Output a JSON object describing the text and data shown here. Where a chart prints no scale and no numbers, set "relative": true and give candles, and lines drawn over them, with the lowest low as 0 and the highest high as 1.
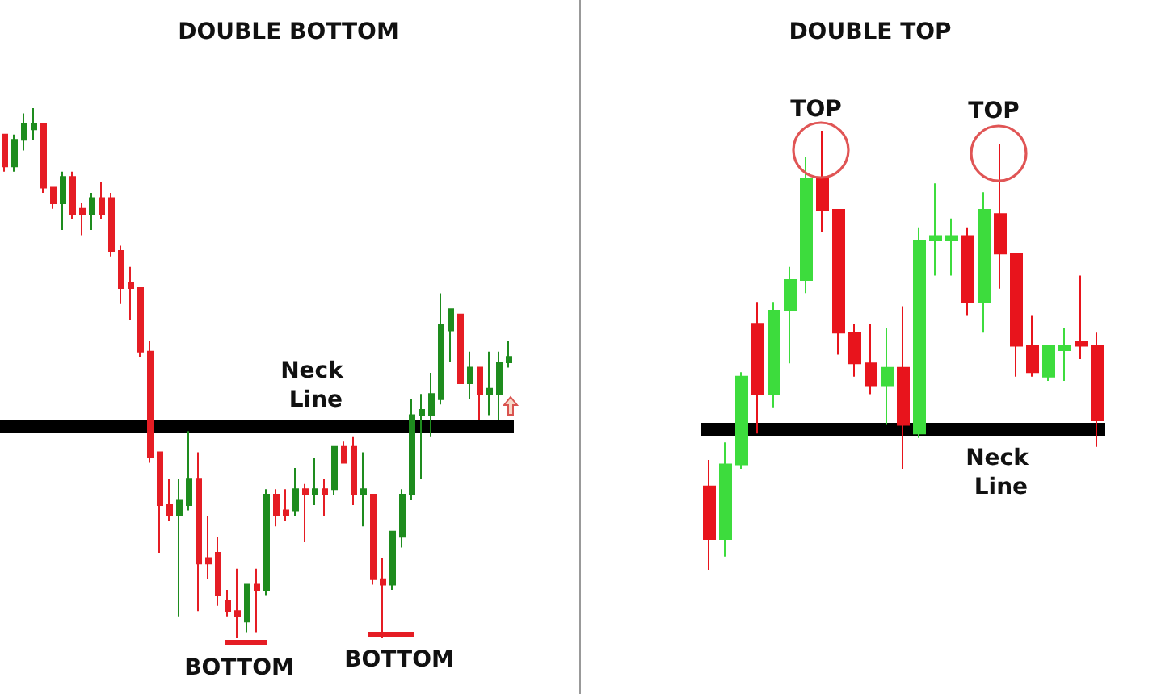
{
  "chart_data": [
    {
      "type": "candlestick",
      "title": "DOUBLE BOTTOM",
      "relative": true,
      "categories": [
        null,
        null,
        null,
        null,
        null,
        null,
        null,
        null,
        null,
        null,
        null,
        null,
        null,
        null,
        null,
        null,
        null,
        null,
        null,
        null,
        null,
        null,
        null,
        null,
        null,
        null,
        null,
        null,
        null,
        null,
        null,
        null,
        null,
        null,
        null,
        null,
        null,
        null,
        null,
        null,
        null,
        null,
        null,
        null,
        null,
        null,
        null,
        null,
        null,
        null,
        null,
        null,
        null
      ],
      "ohlc": [
        [
          0.95,
          0.95,
          0.88,
          0.89
        ],
        [
          0.89,
          0.95,
          0.88,
          0.94
        ],
        [
          0.94,
          0.99,
          0.92,
          0.97
        ],
        [
          0.96,
          1,
          0.94,
          0.97
        ],
        [
          0.97,
          0.97,
          0.84,
          0.85
        ],
        [
          0.85,
          0.85,
          0.81,
          0.82
        ],
        [
          0.82,
          0.88,
          0.77,
          0.87
        ],
        [
          0.87,
          0.88,
          0.79,
          0.8
        ],
        [
          0.81,
          0.82,
          0.76,
          0.8
        ],
        [
          0.8,
          0.84,
          0.77,
          0.83
        ],
        [
          0.83,
          0.86,
          0.79,
          0.8
        ],
        [
          0.83,
          0.84,
          0.72,
          0.73
        ],
        [
          0.73,
          0.74,
          0.63,
          0.66
        ],
        [
          0.67,
          0.7,
          0.6,
          0.66
        ],
        [
          0.66,
          0.66,
          0.53,
          0.54
        ],
        [
          0.54,
          0.56,
          0.33,
          0.34
        ],
        [
          0.35,
          0.35,
          0.16,
          0.25
        ],
        [
          0.25,
          0.3,
          0.22,
          0.23
        ],
        [
          0.23,
          0.3,
          0.04,
          0.26
        ],
        [
          0.25,
          0.39,
          0.24,
          0.3
        ],
        [
          0.3,
          0.35,
          0.05,
          0.14
        ],
        [
          0.15,
          0.23,
          0.11,
          0.14
        ],
        [
          0.16,
          0.19,
          0.06,
          0.08
        ],
        [
          0.07,
          0.09,
          0.04,
          0.05
        ],
        [
          0.05,
          0.13,
          0,
          0.04
        ],
        [
          0.03,
          0.1,
          0.01,
          0.1
        ],
        [
          0.1,
          0.13,
          0.01,
          0.09
        ],
        [
          0.09,
          0.28,
          0.08,
          0.27
        ],
        [
          0.27,
          0.28,
          0.21,
          0.23
        ],
        [
          0.24,
          0.28,
          0.22,
          0.23
        ],
        [
          0.24,
          0.32,
          0.23,
          0.28
        ],
        [
          0.28,
          0.29,
          0.18,
          0.27
        ],
        [
          0.27,
          0.34,
          0.25,
          0.28
        ],
        [
          0.28,
          0.3,
          0.23,
          0.27
        ],
        [
          0.28,
          0.36,
          0.27,
          0.36
        ],
        [
          0.36,
          0.37,
          0.33,
          0.33
        ],
        [
          0.36,
          0.38,
          0.25,
          0.27
        ],
        [
          0.27,
          0.35,
          0.21,
          0.28
        ],
        [
          0.27,
          0.27,
          0.1,
          0.11
        ],
        [
          0.11,
          0.15,
          0,
          0.1
        ],
        [
          0.1,
          0.2,
          0.09,
          0.2
        ],
        [
          0.19,
          0.28,
          0.17,
          0.27
        ],
        [
          0.27,
          0.45,
          0.26,
          0.42
        ],
        [
          0.42,
          0.46,
          0.3,
          0.43
        ],
        [
          0.42,
          0.5,
          0.38,
          0.46
        ],
        [
          0.45,
          0.65,
          0.44,
          0.59
        ],
        [
          0.58,
          0.62,
          0.52,
          0.62
        ],
        [
          0.61,
          0.61,
          0.48,
          0.48
        ],
        [
          0.48,
          0.54,
          0.45,
          0.51
        ],
        [
          0.51,
          0.51,
          0.41,
          0.46
        ],
        [
          0.46,
          0.54,
          0.42,
          0.47
        ],
        [
          0.46,
          0.54,
          0.41,
          0.52
        ],
        [
          0.52,
          0.56,
          0.51,
          0.53
        ]
      ],
      "colors": [
        "#e51d24",
        "#1e8c1e",
        "#1e8c1e",
        "#1e8c1e",
        "#e51d24",
        "#e51d24",
        "#1e8c1e",
        "#e51d24",
        "#e51d24",
        "#1e8c1e",
        "#e51d24",
        "#e51d24",
        "#e51d24",
        "#e51d24",
        "#e51d24",
        "#e51d24",
        "#e51d24",
        "#e51d24",
        "#1e8c1e",
        "#1e8c1e",
        "#e51d24",
        "#e51d24",
        "#e51d24",
        "#e51d24",
        "#e51d24",
        "#1e8c1e",
        "#e51d24",
        "#1e8c1e",
        "#e51d24",
        "#e51d24",
        "#1e8c1e",
        "#e51d24",
        "#1e8c1e",
        "#e51d24",
        "#1e8c1e",
        "#e51d24",
        "#e51d24",
        "#1e8c1e",
        "#e51d24",
        "#e51d24",
        "#1e8c1e",
        "#1e8c1e",
        "#1e8c1e",
        "#1e8c1e",
        "#1e8c1e",
        "#1e8c1e",
        "#1e8c1e",
        "#e51d24",
        "#1e8c1e",
        "#e51d24",
        "#1e8c1e",
        "#1e8c1e",
        "#1e8c1e"
      ],
      "ref_lines": [
        {
          "axis": "y",
          "value": 0.4,
          "label": "Neck Line",
          "color": "#000000"
        }
      ],
      "annotations": [
        "BOTTOM",
        "BOTTOM"
      ]
    },
    {
      "type": "candlestick",
      "title": "DOUBLE TOP",
      "relative": true,
      "categories": [
        null,
        null,
        null,
        null,
        null,
        null,
        null,
        null,
        null,
        null,
        null,
        null,
        null,
        null,
        null,
        null,
        null,
        null,
        null,
        null,
        null,
        null,
        null,
        null,
        null
      ],
      "ohlc": [
        [
          0.19,
          0.25,
          0,
          0.07
        ],
        [
          0.07,
          0.29,
          0.03,
          0.24
        ],
        [
          0.24,
          0.45,
          0.23,
          0.44
        ],
        [
          0.56,
          0.61,
          0.31,
          0.4
        ],
        [
          0.4,
          0.61,
          0.37,
          0.59
        ],
        [
          0.59,
          0.69,
          0.47,
          0.66
        ],
        [
          0.66,
          0.94,
          0.63,
          0.89
        ],
        [
          0.89,
          1,
          0.77,
          0.82
        ],
        [
          0.82,
          0.82,
          0.49,
          0.54
        ],
        [
          0.54,
          0.56,
          0.44,
          0.47
        ],
        [
          0.47,
          0.56,
          0.4,
          0.42
        ],
        [
          0.42,
          0.55,
          0.33,
          0.46
        ],
        [
          0.46,
          0.6,
          0.23,
          0.33
        ],
        [
          0.31,
          0.78,
          0.3,
          0.75
        ],
        [
          0.75,
          0.88,
          0.67,
          0.76
        ],
        [
          0.75,
          0.8,
          0.67,
          0.76
        ],
        [
          0.76,
          0.78,
          0.58,
          0.61
        ],
        [
          0.61,
          0.86,
          0.54,
          0.82
        ],
        [
          0.81,
          0.97,
          0.64,
          0.72
        ],
        [
          0.72,
          0.72,
          0.44,
          0.51
        ],
        [
          0.51,
          0.58,
          0.44,
          0.45
        ],
        [
          0.44,
          0.51,
          0.43,
          0.51
        ],
        [
          0.5,
          0.55,
          0.43,
          0.51
        ],
        [
          0.52,
          0.67,
          0.48,
          0.51
        ],
        [
          0.51,
          0.54,
          0.28,
          0.34
        ]
      ],
      "colors": [
        "#e8141c",
        "#3ddc3d",
        "#3ddc3d",
        "#e8141c",
        "#3ddc3d",
        "#3ddc3d",
        "#3ddc3d",
        "#e8141c",
        "#e8141c",
        "#e8141c",
        "#e8141c",
        "#3ddc3d",
        "#e8141c",
        "#3ddc3d",
        "#3ddc3d",
        "#3ddc3d",
        "#e8141c",
        "#3ddc3d",
        "#e8141c",
        "#e8141c",
        "#e8141c",
        "#3ddc3d",
        "#3ddc3d",
        "#e8141c",
        "#e8141c"
      ],
      "ref_lines": [
        {
          "axis": "y",
          "value": 0.32,
          "label": "Neck Line",
          "color": "#000000"
        }
      ],
      "annotations": [
        "TOP",
        "TOP"
      ]
    }
  ]
}
